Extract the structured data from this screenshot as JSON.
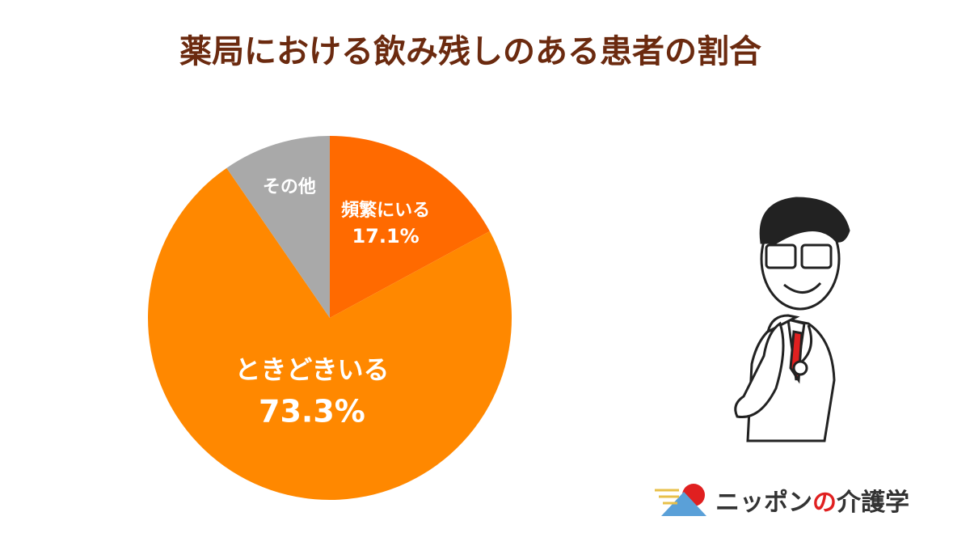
{
  "chart_data": {
    "type": "pie",
    "title": "薬局における飲み残しのある患者の割合",
    "categories": [
      "頻繁にいる",
      "ときどきいる",
      "その他"
    ],
    "values": [
      17.1,
      73.3,
      9.6
    ],
    "value_labels": [
      "17.1%",
      "73.3%",
      null
    ],
    "colors": [
      "#ff6a00",
      "#ff8800",
      "#a9a9a9"
    ]
  },
  "logo": [
    "ニッポン",
    "の",
    "介護学"
  ]
}
